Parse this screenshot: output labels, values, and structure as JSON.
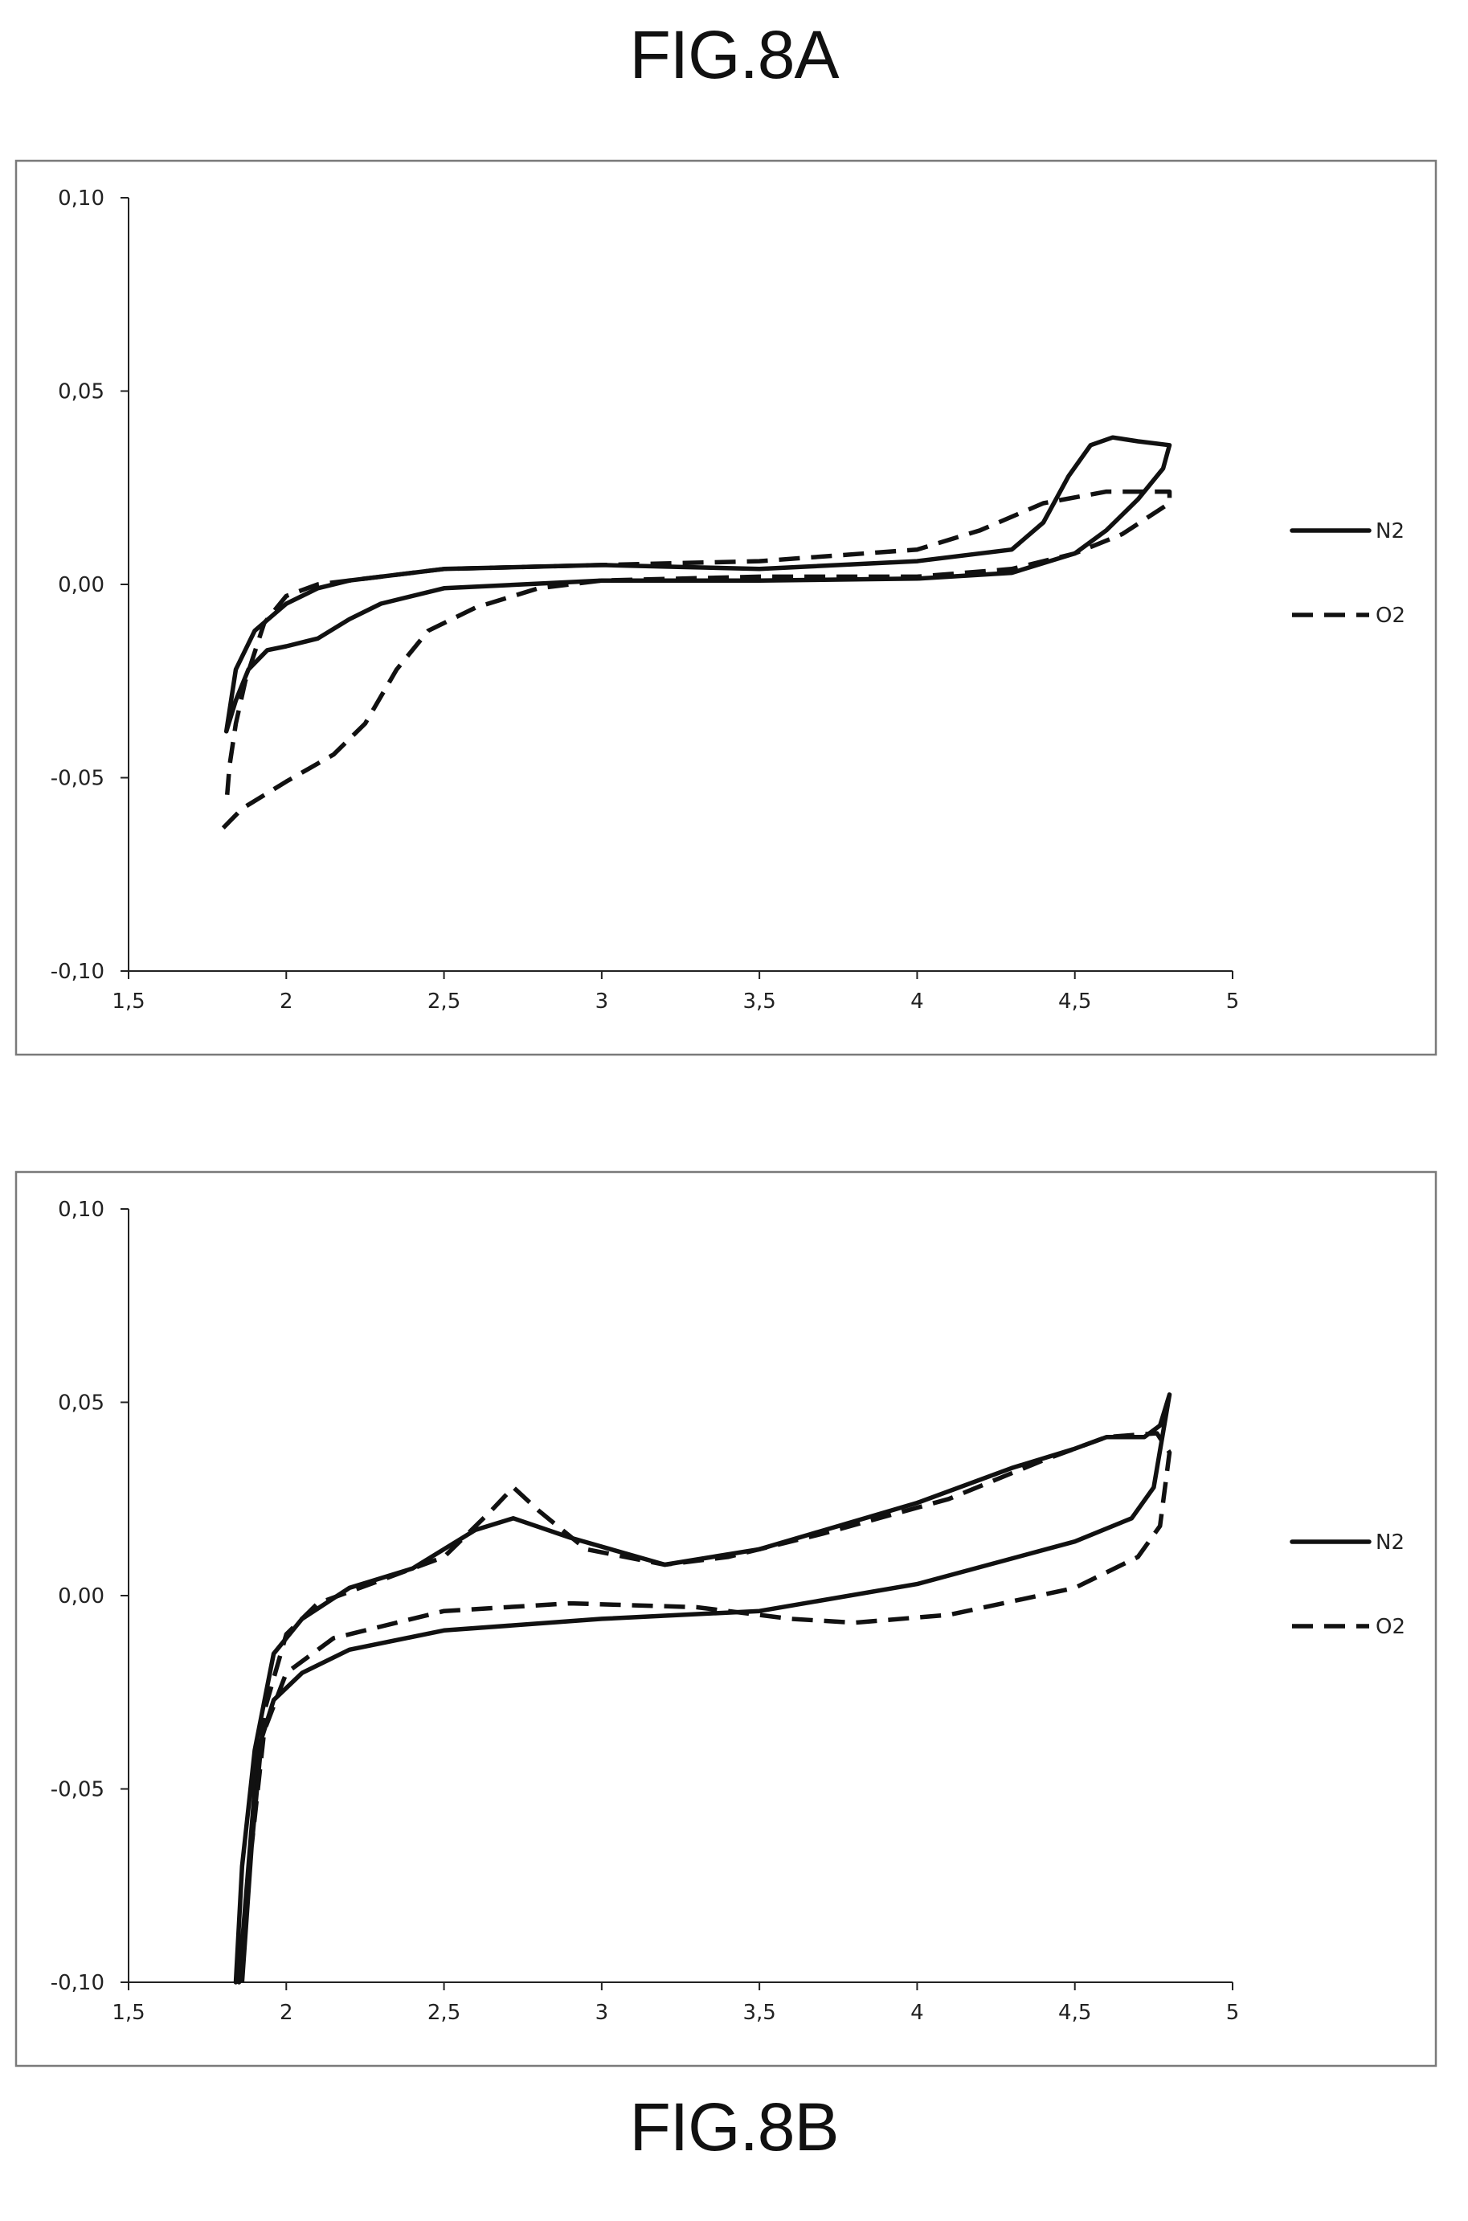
{
  "figures": {
    "a": {
      "title": "FIG.8A"
    },
    "b": {
      "title": "FIG.8B"
    }
  },
  "chart_data": [
    {
      "type": "line",
      "title": "FIG.8A",
      "xlabel": "",
      "ylabel": "",
      "xlim": [
        1.5,
        5
      ],
      "ylim": [
        -0.1,
        0.1
      ],
      "x_ticks": [
        "1,5",
        "2",
        "2,5",
        "3",
        "3,5",
        "4",
        "4,5",
        "5"
      ],
      "y_ticks": [
        "-0,10",
        "-0,05",
        "0,00",
        "0,05",
        "0,10"
      ],
      "grid": false,
      "legend_position": "right",
      "series": [
        {
          "name": "N2",
          "style": "solid",
          "points": [
            [
              1.81,
              -0.038
            ],
            [
              1.84,
              -0.03
            ],
            [
              1.88,
              -0.022
            ],
            [
              1.94,
              -0.017
            ],
            [
              2.0,
              -0.016
            ],
            [
              2.1,
              -0.014
            ],
            [
              2.2,
              -0.009
            ],
            [
              2.3,
              -0.005
            ],
            [
              2.5,
              -0.001
            ],
            [
              3.0,
              0.001
            ],
            [
              3.5,
              0.001
            ],
            [
              4.0,
              0.0015
            ],
            [
              4.3,
              0.003
            ],
            [
              4.5,
              0.008
            ],
            [
              4.6,
              0.014
            ],
            [
              4.7,
              0.022
            ],
            [
              4.78,
              0.03
            ],
            [
              4.8,
              0.036
            ],
            [
              4.7,
              0.037
            ],
            [
              4.62,
              0.038
            ],
            [
              4.55,
              0.036
            ],
            [
              4.48,
              0.028
            ],
            [
              4.4,
              0.016
            ],
            [
              4.3,
              0.009
            ],
            [
              4.0,
              0.006
            ],
            [
              3.5,
              0.004
            ],
            [
              3.0,
              0.005
            ],
            [
              2.5,
              0.004
            ],
            [
              2.2,
              0.001
            ],
            [
              2.1,
              -0.001
            ],
            [
              2.0,
              -0.005
            ],
            [
              1.9,
              -0.012
            ],
            [
              1.84,
              -0.022
            ],
            [
              1.81,
              -0.038
            ]
          ]
        },
        {
          "name": "O2",
          "style": "dashed",
          "points": [
            [
              1.8,
              -0.063
            ],
            [
              1.86,
              -0.058
            ],
            [
              2.0,
              -0.051
            ],
            [
              2.15,
              -0.044
            ],
            [
              2.25,
              -0.036
            ],
            [
              2.35,
              -0.022
            ],
            [
              2.45,
              -0.012
            ],
            [
              2.6,
              -0.006
            ],
            [
              2.8,
              -0.001
            ],
            [
              3.0,
              0.001
            ],
            [
              3.5,
              0.002
            ],
            [
              4.0,
              0.002
            ],
            [
              4.3,
              0.004
            ],
            [
              4.5,
              0.008
            ],
            [
              4.65,
              0.013
            ],
            [
              4.8,
              0.021
            ],
            [
              4.8,
              0.024
            ],
            [
              4.6,
              0.024
            ],
            [
              4.4,
              0.021
            ],
            [
              4.2,
              0.014
            ],
            [
              4.0,
              0.009
            ],
            [
              3.5,
              0.006
            ],
            [
              3.0,
              0.005
            ],
            [
              2.5,
              0.004
            ],
            [
              2.1,
              0.0
            ],
            [
              2.0,
              -0.003
            ],
            [
              1.93,
              -0.01
            ],
            [
              1.87,
              -0.025
            ],
            [
              1.84,
              -0.036
            ],
            [
              1.82,
              -0.047
            ],
            [
              1.81,
              -0.057
            ]
          ]
        }
      ]
    },
    {
      "type": "line",
      "title": "FIG.8B",
      "xlabel": "",
      "ylabel": "",
      "xlim": [
        1.5,
        5
      ],
      "ylim": [
        -0.1,
        0.1
      ],
      "x_ticks": [
        "1,5",
        "2",
        "2,5",
        "3",
        "3,5",
        "4",
        "4,5",
        "5"
      ],
      "y_ticks": [
        "-0,10",
        "-0,05",
        "0,00",
        "0,05",
        "0,10"
      ],
      "grid": false,
      "legend_position": "right",
      "series": [
        {
          "name": "N2",
          "style": "solid",
          "points": [
            [
              1.85,
              -0.1
            ],
            [
              1.88,
              -0.07
            ],
            [
              1.91,
              -0.04
            ],
            [
              1.96,
              -0.027
            ],
            [
              2.05,
              -0.02
            ],
            [
              2.2,
              -0.014
            ],
            [
              2.5,
              -0.009
            ],
            [
              3.0,
              -0.006
            ],
            [
              3.5,
              -0.004
            ],
            [
              4.0,
              0.003
            ],
            [
              4.5,
              0.014
            ],
            [
              4.68,
              0.02
            ],
            [
              4.75,
              0.028
            ],
            [
              4.8,
              0.052
            ],
            [
              4.77,
              0.044
            ],
            [
              4.72,
              0.041
            ],
            [
              4.6,
              0.041
            ],
            [
              4.5,
              0.038
            ],
            [
              4.3,
              0.033
            ],
            [
              4.0,
              0.024
            ],
            [
              3.5,
              0.012
            ],
            [
              3.2,
              0.008
            ],
            [
              2.9,
              0.015
            ],
            [
              2.72,
              0.02
            ],
            [
              2.6,
              0.017
            ],
            [
              2.4,
              0.007
            ],
            [
              2.2,
              0.002
            ],
            [
              2.05,
              -0.006
            ],
            [
              1.96,
              -0.015
            ],
            [
              1.9,
              -0.04
            ],
            [
              1.86,
              -0.07
            ],
            [
              1.84,
              -0.1
            ]
          ]
        },
        {
          "name": "O2",
          "style": "dashed",
          "points": [
            [
              1.86,
              -0.1
            ],
            [
              1.89,
              -0.065
            ],
            [
              1.93,
              -0.035
            ],
            [
              2.0,
              -0.02
            ],
            [
              2.15,
              -0.011
            ],
            [
              2.5,
              -0.004
            ],
            [
              2.9,
              -0.002
            ],
            [
              3.3,
              -0.003
            ],
            [
              3.6,
              -0.006
            ],
            [
              3.8,
              -0.007
            ],
            [
              4.1,
              -0.005
            ],
            [
              4.5,
              0.002
            ],
            [
              4.7,
              0.01
            ],
            [
              4.77,
              0.018
            ],
            [
              4.8,
              0.037
            ],
            [
              4.76,
              0.042
            ],
            [
              4.6,
              0.041
            ],
            [
              4.4,
              0.035
            ],
            [
              4.1,
              0.025
            ],
            [
              3.7,
              0.016
            ],
            [
              3.4,
              0.01
            ],
            [
              3.2,
              0.008
            ],
            [
              2.95,
              0.012
            ],
            [
              2.8,
              0.022
            ],
            [
              2.72,
              0.028
            ],
            [
              2.65,
              0.022
            ],
            [
              2.5,
              0.01
            ],
            [
              2.3,
              0.004
            ],
            [
              2.1,
              -0.002
            ],
            [
              2.0,
              -0.01
            ],
            [
              1.93,
              -0.03
            ],
            [
              1.89,
              -0.065
            ],
            [
              1.86,
              -0.1
            ]
          ]
        }
      ]
    }
  ]
}
